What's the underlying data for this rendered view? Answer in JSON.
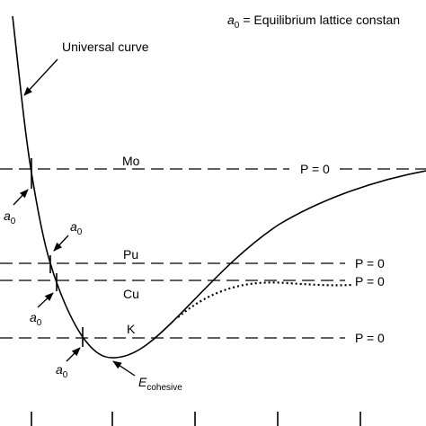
{
  "legend": {
    "symbol": "a",
    "subscript": "0",
    "text": "= Equilibrium lattice constan"
  },
  "curve_label": "Universal curve",
  "metals": [
    "Mo",
    "Pu",
    "Cu",
    "K"
  ],
  "pressure_labels": [
    "P = 0",
    "P = 0",
    "P = 0",
    "P = 0"
  ],
  "a0_labels": [
    {
      "symbol": "a",
      "subscript": "0"
    },
    {
      "symbol": "a",
      "subscript": "0"
    },
    {
      "symbol": "a",
      "subscript": "0"
    },
    {
      "symbol": "a",
      "subscript": "0"
    }
  ],
  "cohesive_label": {
    "symbol": "E",
    "subscript": "cohesive"
  }
}
